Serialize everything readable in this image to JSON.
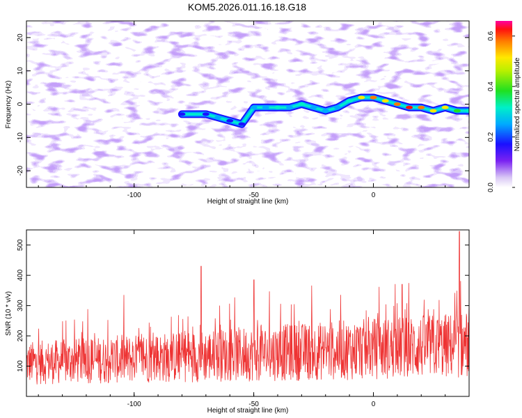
{
  "title": "KOM5.2026.011.16.18.G18",
  "chart_data": [
    {
      "type": "heatmap",
      "xlabel": "Height of straight line (km)",
      "ylabel": "Frequency (Hz)",
      "xlim": [
        -145,
        40
      ],
      "ylim": [
        -25,
        25
      ],
      "xticks": [
        -100,
        -50,
        0
      ],
      "yticks": [
        -20,
        -10,
        0,
        10,
        20
      ],
      "colorbar": {
        "label": "Normalized spectral amplitude",
        "range": [
          0,
          0.66
        ],
        "ticks": [
          "0.0",
          "0.2",
          "0.4",
          "0.6"
        ]
      },
      "ridge": {
        "x": [
          -80,
          -70,
          -65,
          -60,
          -55,
          -50,
          -45,
          -40,
          -35,
          -30,
          -25,
          -20,
          -15,
          -10,
          -5,
          0,
          5,
          10,
          15,
          20,
          25,
          30,
          35,
          40
        ],
        "y": [
          -3,
          -3,
          -4,
          -5,
          -6,
          -1,
          -1,
          -1,
          -1,
          0,
          -1,
          -2,
          -1,
          1,
          2,
          2,
          1,
          0,
          -1,
          -1,
          -2,
          -1,
          -2,
          -2
        ],
        "amplitude": [
          0.3,
          0.3,
          0.35,
          0.3,
          0.3,
          0.35,
          0.4,
          0.45,
          0.4,
          0.45,
          0.35,
          0.4,
          0.35,
          0.45,
          0.55,
          0.6,
          0.55,
          0.6,
          0.66,
          0.6,
          0.55,
          0.55,
          0.5,
          0.45
        ]
      }
    },
    {
      "type": "line",
      "xlabel": "Height of straight line (km)",
      "ylabel": "SNR (10 * v/v)",
      "xlim": [
        -145,
        40
      ],
      "ylim": [
        0,
        550
      ],
      "xticks": [
        -100,
        -50,
        0
      ],
      "yticks": [
        100,
        200,
        300,
        400,
        500
      ],
      "series": [
        {
          "name": "SNR",
          "color": "#ee3333",
          "x_start": -145,
          "x_end": 40,
          "trend_start": 110,
          "trend_end": 170,
          "peak_values": [
            {
              "x": -72,
              "y": 430
            },
            {
              "x": -50,
              "y": 385
            },
            {
              "x": 12,
              "y": 370
            },
            {
              "x": 36,
              "y": 545
            }
          ]
        }
      ]
    }
  ]
}
